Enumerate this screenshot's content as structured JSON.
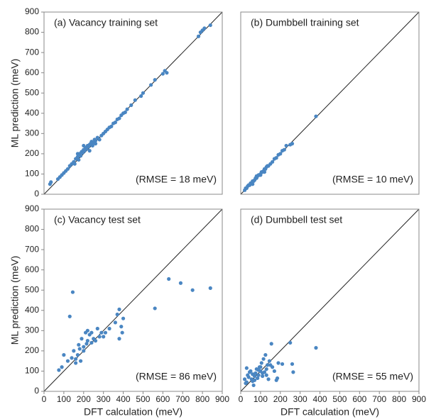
{
  "chart_data": [
    {
      "type": "scatter",
      "title": "(a) Vacancy training set",
      "annotation": "(RMSE = 18 meV)",
      "color": "#4a86c2",
      "ylabel": "ML prediction (meV)",
      "xlim": [
        0,
        900
      ],
      "ylim": [
        0,
        900
      ],
      "yticks": [
        0,
        100,
        200,
        300,
        400,
        500,
        600,
        700,
        800,
        900
      ],
      "x": [
        30,
        35,
        70,
        80,
        90,
        100,
        110,
        120,
        130,
        140,
        150,
        155,
        160,
        170,
        175,
        180,
        185,
        190,
        195,
        200,
        205,
        210,
        215,
        220,
        225,
        230,
        235,
        240,
        245,
        250,
        255,
        260,
        270,
        280,
        290,
        300,
        310,
        320,
        330,
        340,
        350,
        360,
        370,
        380,
        390,
        400,
        410,
        420,
        440,
        460,
        490,
        500,
        540,
        560,
        600,
        610,
        620,
        780,
        790,
        800,
        810,
        840,
        170,
        200,
        230,
        260
      ],
      "y": [
        50,
        60,
        75,
        85,
        95,
        105,
        115,
        125,
        140,
        150,
        160,
        150,
        175,
        185,
        170,
        200,
        190,
        210,
        205,
        220,
        215,
        230,
        225,
        240,
        235,
        245,
        250,
        260,
        240,
        255,
        270,
        265,
        280,
        270,
        290,
        300,
        310,
        320,
        330,
        335,
        350,
        355,
        370,
        375,
        390,
        400,
        405,
        420,
        440,
        465,
        485,
        500,
        540,
        565,
        595,
        610,
        600,
        780,
        800,
        810,
        820,
        835,
        200,
        240,
        215,
        250
      ]
    },
    {
      "type": "scatter",
      "title": "(b) Dumbbell training set",
      "annotation": "(RMSE = 10 meV)",
      "color": "#4a86c2",
      "xlim": [
        0,
        900
      ],
      "ylim": [
        0,
        900
      ],
      "x": [
        20,
        25,
        30,
        35,
        40,
        45,
        50,
        55,
        60,
        65,
        70,
        75,
        80,
        85,
        90,
        95,
        100,
        105,
        110,
        115,
        120,
        125,
        130,
        135,
        140,
        150,
        160,
        170,
        180,
        190,
        200,
        210,
        220,
        230,
        250,
        260,
        380,
        60,
        80,
        100,
        120
      ],
      "y": [
        20,
        30,
        30,
        40,
        45,
        45,
        55,
        55,
        65,
        65,
        70,
        80,
        80,
        90,
        95,
        95,
        100,
        110,
        110,
        115,
        125,
        125,
        135,
        140,
        140,
        150,
        160,
        175,
        180,
        195,
        200,
        215,
        220,
        240,
        245,
        250,
        385,
        50,
        90,
        95,
        110
      ]
    },
    {
      "type": "scatter",
      "title": "(c) Vacancy test set",
      "annotation": "(RMSE = 86 meV)",
      "color": "#4a86c2",
      "xlabel": "DFT calculation (meV)",
      "ylabel": "ML prediction (meV)",
      "xlim": [
        0,
        900
      ],
      "ylim": [
        0,
        900
      ],
      "xticks": [
        0,
        100,
        200,
        300,
        400,
        500,
        600,
        700,
        800,
        900
      ],
      "yticks": [
        0,
        100,
        200,
        300,
        400,
        500,
        600,
        700,
        800,
        900
      ],
      "x": [
        75,
        90,
        100,
        130,
        145,
        140,
        150,
        160,
        170,
        175,
        180,
        185,
        190,
        200,
        210,
        215,
        220,
        230,
        240,
        250,
        260,
        270,
        280,
        290,
        300,
        310,
        330,
        360,
        370,
        380,
        390,
        395,
        380,
        560,
        630,
        690,
        750,
        840,
        400,
        200,
        220,
        240,
        160,
        120
      ],
      "y": [
        105,
        120,
        180,
        370,
        490,
        165,
        200,
        140,
        180,
        230,
        210,
        150,
        260,
        220,
        290,
        235,
        250,
        280,
        240,
        260,
        250,
        310,
        270,
        290,
        270,
        290,
        310,
        340,
        380,
        405,
        320,
        290,
        260,
        410,
        555,
        535,
        500,
        510,
        360,
        200,
        300,
        290,
        160,
        150
      ]
    },
    {
      "type": "scatter",
      "title": "(d) Dumbbell test set",
      "annotation": "(RMSE = 55 meV)",
      "color": "#4a86c2",
      "xlabel": "DFT calculation (meV)",
      "xlim": [
        0,
        900
      ],
      "ylim": [
        0,
        900
      ],
      "xticks": [
        0,
        100,
        200,
        300,
        400,
        500,
        600,
        700,
        800,
        900
      ],
      "x": [
        20,
        25,
        30,
        35,
        40,
        45,
        50,
        55,
        60,
        65,
        70,
        75,
        80,
        85,
        90,
        95,
        100,
        105,
        110,
        115,
        120,
        125,
        130,
        135,
        140,
        145,
        150,
        155,
        160,
        170,
        180,
        185,
        190,
        210,
        250,
        260,
        265,
        380,
        60,
        90,
        110,
        130,
        30,
        70,
        100
      ],
      "y": [
        60,
        40,
        115,
        80,
        70,
        95,
        100,
        60,
        85,
        30,
        75,
        90,
        110,
        65,
        80,
        120,
        100,
        140,
        75,
        160,
        95,
        180,
        110,
        130,
        60,
        150,
        130,
        235,
        120,
        100,
        55,
        65,
        140,
        135,
        240,
        135,
        95,
        215,
        50,
        105,
        90,
        80,
        45,
        55,
        120
      ]
    }
  ]
}
